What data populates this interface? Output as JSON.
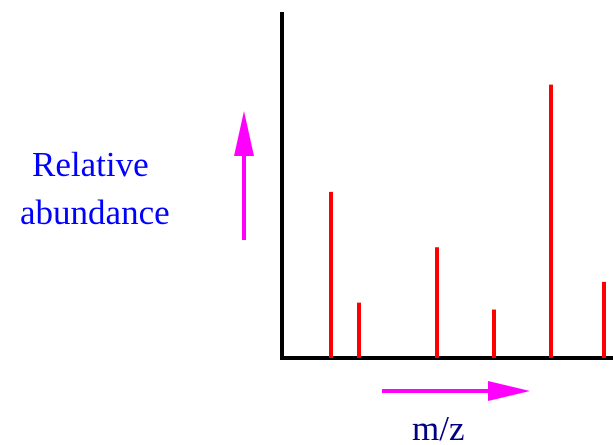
{
  "colors": {
    "axis": "#000000",
    "peaks": "#ff0000",
    "arrows": "#ff00ff",
    "ylabel": "#0000ff",
    "xlabel": "#000080"
  },
  "chart_data": {
    "type": "bar",
    "description_style": "mass spectrum stick plot",
    "xlabel": "m/z",
    "ylabel_lines": [
      "Relative",
      "abundance"
    ],
    "grid": false,
    "x": [
      1,
      2,
      3,
      4,
      5,
      6
    ],
    "values": [
      48,
      16,
      32,
      14,
      79,
      22
    ],
    "ylim": [
      0,
      100
    ]
  }
}
